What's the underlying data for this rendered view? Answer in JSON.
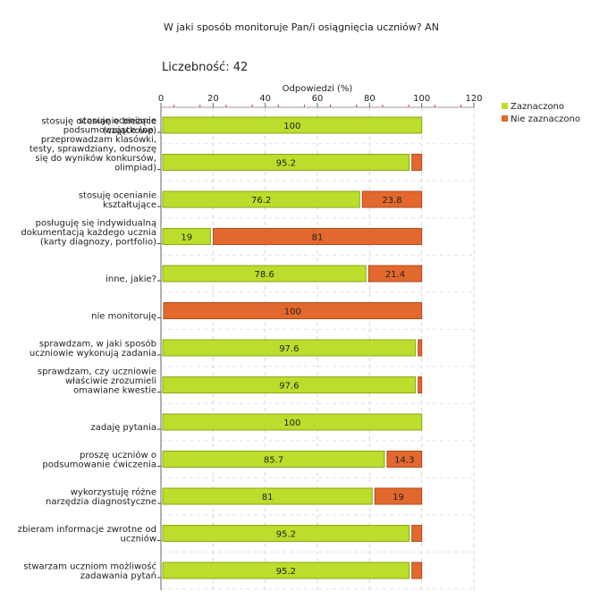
{
  "chart_data": {
    "type": "bar",
    "orientation": "horizontal",
    "stacked": true,
    "title": "W jaki sposób monitoruje Pan/i osiągnięcia uczniów?  AN",
    "count_label": "Liczebność:  42",
    "xlabel": "Odpowiedzi (%)",
    "xlim": [
      0,
      120
    ],
    "xticks": [
      0,
      20,
      40,
      60,
      80,
      100,
      120
    ],
    "categories": [
      [
        "stosuję ocenianie bieżące",
        "(cząstkowe)"
      ],
      [
        "stosuję ocenianie",
        "podsumowujące (np.",
        "przeprowadzam klasówki,",
        "testy, sprawdziany, odnoszę",
        "się do wyników konkursów,",
        "olimpiad)"
      ],
      [
        "stosuję ocenianie",
        "kształtujące"
      ],
      [
        "posługuję się indywidualną",
        "dokumentacją każdego ucznia",
        "(karty diagnozy, portfolio)"
      ],
      [
        "inne, jakie?"
      ],
      [
        "nie monitoruję"
      ],
      [
        "sprawdzam, w jaki sposób",
        "uczniowie wykonują zadania"
      ],
      [
        "sprawdzam, czy uczniowie",
        "właściwie zrozumieli",
        "omawiane kwestie"
      ],
      [
        "zadaję pytania"
      ],
      [
        "proszę uczniów o",
        "podsumowanie ćwiczenia"
      ],
      [
        "wykorzystuję różne",
        "narzędzia diagnostyczne"
      ],
      [
        "zbieram informacje zwrotne od",
        "uczniów"
      ],
      [
        "stwarzam uczniom możliwość",
        "zadawania pytań"
      ]
    ],
    "series": [
      {
        "name": "Zaznaczono",
        "color": "#bbdd2b",
        "stroke": "#8aa81c",
        "values": [
          100,
          95.2,
          76.2,
          19,
          78.6,
          0,
          97.6,
          97.6,
          100,
          85.7,
          81,
          95.2,
          95.2
        ],
        "labels": [
          "100",
          "95.2",
          "76.2",
          "19",
          "78.6",
          "",
          "97.6",
          "97.6",
          "100",
          "85.7",
          "81",
          "95.2",
          "95.2"
        ]
      },
      {
        "name": "Nie zaznaczono",
        "color": "#e2682d",
        "stroke": "#b24d1d",
        "values": [
          0,
          4.8,
          23.8,
          81,
          21.4,
          100,
          2.4,
          2.4,
          0,
          14.3,
          19,
          4.8,
          4.8
        ],
        "labels": [
          "",
          "",
          "23.8",
          "81",
          "21.4",
          "100",
          "",
          "",
          "",
          "14.3",
          "19",
          "",
          ""
        ]
      }
    ],
    "legend_position": "top-right"
  }
}
